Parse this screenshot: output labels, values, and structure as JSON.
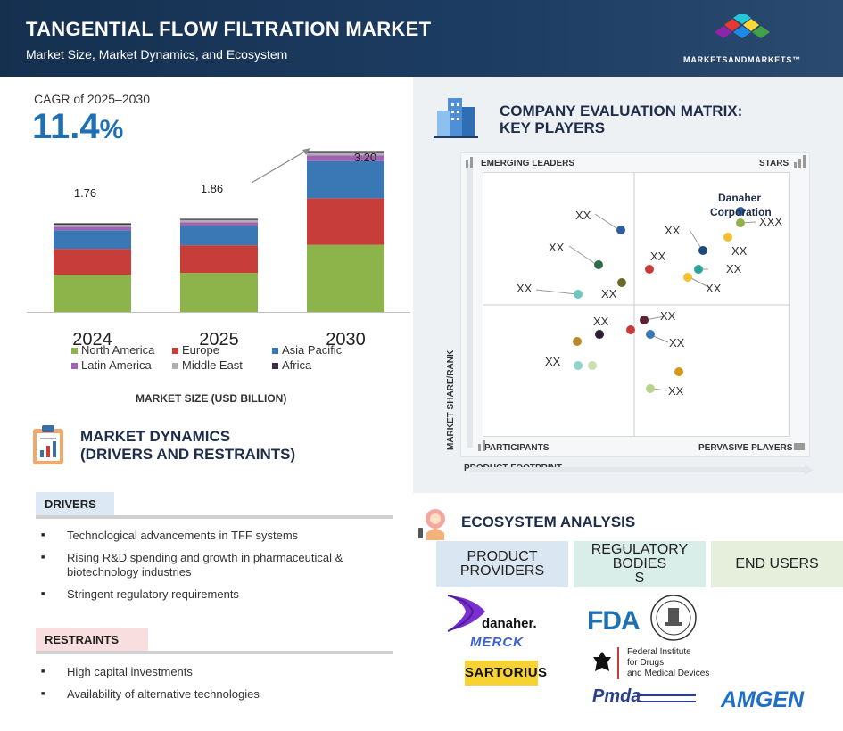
{
  "header": {
    "title": "TANGENTIAL FLOW FILTRATION MARKET",
    "subtitle": "Market Size, Market Dynamics, and Ecosystem",
    "brand": "MARKETSANDMARKETS™"
  },
  "cagr": {
    "label": "CAGR of 2025–2030",
    "value": "11.4",
    "unit": "%"
  },
  "chart_data": {
    "type": "bar",
    "stacked": true,
    "categories": [
      "2024",
      "2025",
      "2030"
    ],
    "totals": [
      "1.76",
      "1.86",
      "3.20"
    ],
    "series": [
      {
        "name": "North America",
        "color": "#8db44a",
        "values": [
          0.74,
          0.78,
          1.34
        ]
      },
      {
        "name": "Europe",
        "color": "#c63d3a",
        "values": [
          0.52,
          0.55,
          0.93
        ]
      },
      {
        "name": "Asia Pacific",
        "color": "#3a78b5",
        "values": [
          0.37,
          0.39,
          0.74
        ]
      },
      {
        "name": "Latin America",
        "color": "#9f62b4",
        "values": [
          0.07,
          0.07,
          0.11
        ]
      },
      {
        "name": "Middle East",
        "color": "#b0b0b0",
        "values": [
          0.04,
          0.045,
          0.05
        ]
      },
      {
        "name": "Africa",
        "color": "#3e2b47",
        "values": [
          0.02,
          0.015,
          0.03
        ]
      }
    ],
    "xlabel": "MARKET SIZE (USD BILLION)",
    "ylabel": "",
    "ylim": [
      0,
      3.2
    ]
  },
  "dynamics": {
    "title_line1": "MARKET DYNAMICS",
    "title_line2": "(DRIVERS AND RESTRAINTS)",
    "drivers_label": "DRIVERS",
    "drivers": [
      "Technological advancements in TFF systems",
      "Rising R&D spending and growth in pharmaceutical & biotechnology industries",
      "Stringent regulatory requirements"
    ],
    "restraints_label": "RESTRAINTS",
    "restraints": [
      "High capital investments",
      "Availability of alternative technologies"
    ]
  },
  "matrix": {
    "title_line1": "COMPANY EVALUATION MATRIX:",
    "title_line2": "KEY PLAYERS",
    "quadrants": {
      "top_left": "EMERGING LEADERS",
      "top_right": "STARS",
      "bottom_left": "PARTICIPANTS",
      "bottom_right": "PERVASIVE PLAYERS"
    },
    "x_axis": "PRODUCT FOOTPRINT",
    "y_axis": "MARKET SHARE/RANK",
    "featured_label": "Danaher Corporation",
    "featured_line1": "Danaher",
    "featured_line2": "Corporation",
    "placeholder": "XX",
    "placeholder_long": "XXX"
  },
  "ecosystem": {
    "title": "ECOSYSTEM ANALYSIS",
    "columns": [
      "PRODUCT PROVIDERS",
      "REGULATORY BODIES S",
      "END USERS"
    ],
    "col1_line1": "PRODUCT",
    "col1_line2": "PROVIDERS",
    "col2_line1": "REGULATORY",
    "col2_line2": "BODIES",
    "col2_line3": "S",
    "col3": "END USERS",
    "logos": {
      "danaher": "danaher.",
      "merck": "MERCK",
      "sartorius": "SARTORIUS",
      "fda": "FDA",
      "bfarm_line1": "Federal Institute",
      "bfarm_line2": "for Drugs",
      "bfarm_line3": "and Medical Devices",
      "pmda": "Pmda",
      "amgen": "AMGEN"
    }
  }
}
